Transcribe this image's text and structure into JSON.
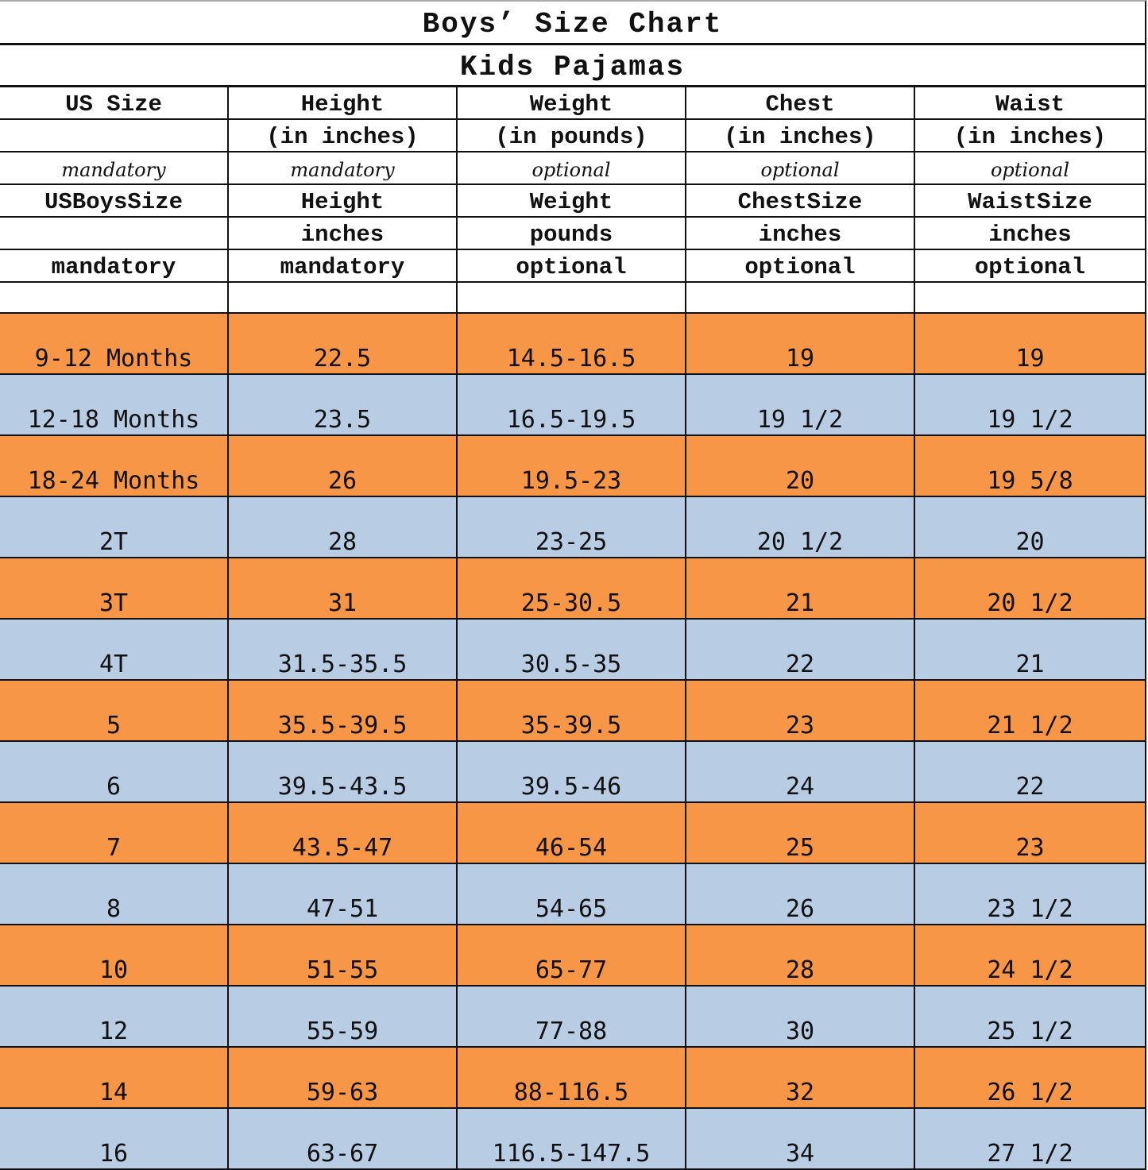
{
  "title": "Boys’ Size Chart",
  "subtitle": "Kids Pajamas",
  "header_rows": [
    [
      "US Size",
      "Height",
      "Weight",
      "Chest",
      "Waist"
    ],
    [
      "",
      "(in inches)",
      "(in pounds)",
      "(in inches)",
      "(in inches)"
    ],
    [
      "mandatory",
      "mandatory",
      "optional",
      "optional",
      "optional"
    ],
    [
      "USBoysSize",
      "Height",
      "Weight",
      "ChestSize",
      "WaistSize"
    ],
    [
      "",
      "inches",
      "pounds",
      "inches",
      "inches"
    ],
    [
      "mandatory",
      "mandatory",
      "optional",
      "optional",
      "optional"
    ]
  ],
  "rows": [
    [
      "9-12 Months",
      "22.5",
      "14.5-16.5",
      "19",
      "19"
    ],
    [
      "12-18 Months",
      "23.5",
      "16.5-19.5",
      "19 1/2",
      "19 1/2"
    ],
    [
      "18-24 Months",
      "26",
      "19.5-23",
      "20",
      "19 5/8"
    ],
    [
      "2T",
      "28",
      "23-25",
      "20 1/2",
      "20"
    ],
    [
      "3T",
      "31",
      "25-30.5",
      "21",
      "20 1/2"
    ],
    [
      "4T",
      "31.5-35.5",
      "30.5-35",
      "22",
      "21"
    ],
    [
      "5",
      "35.5-39.5",
      "35-39.5",
      "23",
      "21 1/2"
    ],
    [
      "6",
      "39.5-43.5",
      "39.5-46",
      "24",
      "22"
    ],
    [
      "7",
      "43.5-47",
      "46-54",
      "25",
      "23"
    ],
    [
      "8",
      "47-51",
      "54-65",
      "26",
      "23 1/2"
    ],
    [
      "10",
      "51-55",
      "65-77",
      "28",
      "24 1/2"
    ],
    [
      "12",
      "55-59",
      "77-88",
      "30",
      "25 1/2"
    ],
    [
      "14",
      "59-63",
      "88-116.5",
      "32",
      "26 1/2"
    ],
    [
      "16",
      "63-67",
      "116.5-147.5",
      "34",
      "27 1/2"
    ]
  ],
  "colors": {
    "odd_row": "#f79646",
    "even_row": "#b8cce4",
    "border": "#111111"
  }
}
